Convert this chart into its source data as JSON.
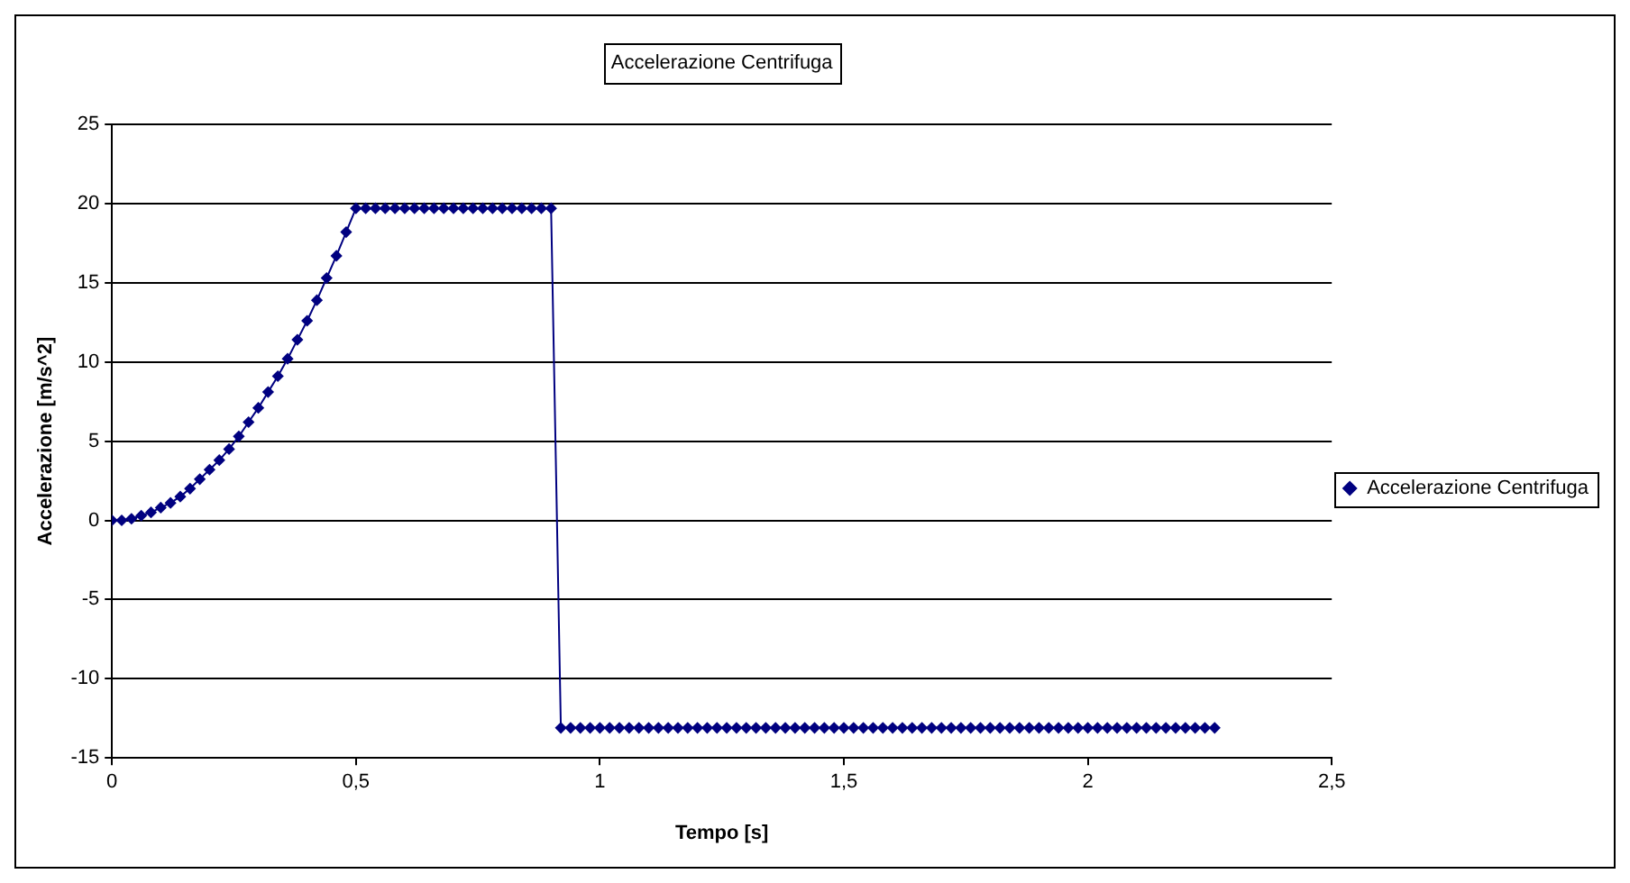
{
  "chart_data": {
    "type": "line",
    "title": "Accelerazione Centrifuga",
    "xlabel": "Tempo [s]",
    "ylabel": "Accelerazione [m/s^2]",
    "xlim": [
      0,
      2.5
    ],
    "xticks": [
      0,
      {
        "value": 0.5,
        "label": "0,5"
      },
      1,
      {
        "value": 1.5,
        "label": "1,5"
      },
      2,
      {
        "value": 2.5,
        "label": "2,5"
      }
    ],
    "ylim": [
      -15,
      25
    ],
    "yticks": [
      -15,
      -10,
      -5,
      0,
      5,
      10,
      15,
      20,
      25
    ],
    "grid": "y",
    "legend": "right",
    "marker": "diamond",
    "line_style": "solid",
    "series": [
      {
        "name": "Accelerazione Centrifuga",
        "color": "#000080",
        "x": [
          0,
          0.02,
          0.04,
          0.06,
          0.08,
          0.1,
          0.12,
          0.14,
          0.16,
          0.18,
          0.2,
          0.22,
          0.24,
          0.26,
          0.28,
          0.3,
          0.32,
          0.34,
          0.36,
          0.38,
          0.4,
          0.42,
          0.44,
          0.46,
          0.48,
          0.5,
          0.52,
          0.54,
          0.56,
          0.58,
          0.6,
          0.62,
          0.64,
          0.66,
          0.68,
          0.7,
          0.72,
          0.74,
          0.76,
          0.78,
          0.8,
          0.82,
          0.84,
          0.86,
          0.88,
          0.9,
          0.92,
          0.94,
          0.96,
          0.98,
          1,
          1.02,
          1.04,
          1.06,
          1.08,
          1.1,
          1.12,
          1.14,
          1.16,
          1.18,
          1.2,
          1.22,
          1.24,
          1.26,
          1.28,
          1.3,
          1.32,
          1.34,
          1.36,
          1.38,
          1.4,
          1.42,
          1.44,
          1.46,
          1.48,
          1.5,
          1.52,
          1.54,
          1.56,
          1.58,
          1.6,
          1.62,
          1.64,
          1.66,
          1.68,
          1.7,
          1.72,
          1.74,
          1.76,
          1.78,
          1.8,
          1.82,
          1.84,
          1.86,
          1.88,
          1.9,
          1.92,
          1.94,
          1.96,
          1.98,
          2,
          2.02,
          2.04,
          2.06,
          2.08,
          2.1,
          2.12,
          2.14,
          2.16,
          2.18,
          2.2,
          2.22,
          2.24,
          2.26
        ],
        "values": [
          0,
          0,
          0.1,
          0.3,
          0.5,
          0.8,
          1.1,
          1.5,
          2,
          2.6,
          3.2,
          3.8,
          4.5,
          5.3,
          6.2,
          7.1,
          8.1,
          9.1,
          10.2,
          11.4,
          12.6,
          13.9,
          15.3,
          16.7,
          18.2,
          19.7,
          19.7,
          19.7,
          19.7,
          19.7,
          19.7,
          19.7,
          19.7,
          19.7,
          19.7,
          19.7,
          19.7,
          19.7,
          19.7,
          19.7,
          19.7,
          19.7,
          19.7,
          19.7,
          19.7,
          19.7,
          -13.1,
          -13.1,
          -13.1,
          -13.1,
          -13.1,
          -13.1,
          -13.1,
          -13.1,
          -13.1,
          -13.1,
          -13.1,
          -13.1,
          -13.1,
          -13.1,
          -13.1,
          -13.1,
          -13.1,
          -13.1,
          -13.1,
          -13.1,
          -13.1,
          -13.1,
          -13.1,
          -13.1,
          -13.1,
          -13.1,
          -13.1,
          -13.1,
          -13.1,
          -13.1,
          -13.1,
          -13.1,
          -13.1,
          -13.1,
          -13.1,
          -13.1,
          -13.1,
          -13.1,
          -13.1,
          -13.1,
          -13.1,
          -13.1,
          -13.1,
          -13.1,
          -13.1,
          -13.1,
          -13.1,
          -13.1,
          -13.1,
          -13.1,
          -13.1,
          -13.1,
          -13.1,
          -13.1,
          -13.1,
          -13.1,
          -13.1,
          -13.1,
          -13.1,
          -13.1,
          -13.1,
          -13.1,
          -13.1,
          -13.1,
          -13.1,
          -13.1,
          -13.1,
          -13.1
        ]
      }
    ]
  }
}
